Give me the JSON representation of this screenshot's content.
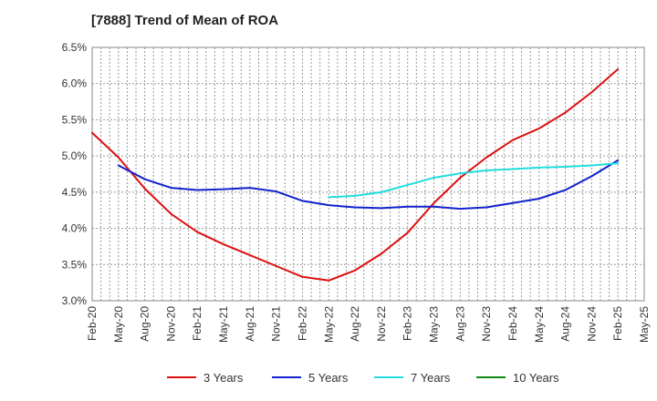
{
  "chart_data": {
    "type": "line",
    "title": "[7888]  Trend of Mean of ROA",
    "xlabel": "",
    "ylabel": "",
    "ylim": [
      3.0,
      6.5
    ],
    "y_ticks": [
      "6.5%",
      "6.0%",
      "5.5%",
      "5.0%",
      "4.5%",
      "4.0%",
      "3.5%",
      "3.0%"
    ],
    "y_tick_values": [
      6.5,
      6.0,
      5.5,
      5.0,
      4.5,
      4.0,
      3.5,
      3.0
    ],
    "categories": [
      "Feb-20",
      "May-20",
      "Aug-20",
      "Nov-20",
      "Feb-21",
      "May-21",
      "Aug-21",
      "Nov-21",
      "Feb-22",
      "May-22",
      "Aug-22",
      "Nov-22",
      "Feb-23",
      "May-23",
      "Aug-23",
      "Nov-23",
      "Feb-24",
      "May-24",
      "Aug-24",
      "Nov-24",
      "Feb-25",
      "May-25"
    ],
    "grid": true,
    "legend_position": "bottom",
    "series": [
      {
        "name": "3 Years",
        "color": "#dd1111",
        "values": [
          5.32,
          4.98,
          4.55,
          4.2,
          3.95,
          3.78,
          3.63,
          3.48,
          3.33,
          3.28,
          3.42,
          3.65,
          3.94,
          4.35,
          4.7,
          4.98,
          5.22,
          5.38,
          5.6,
          5.88,
          6.2,
          null
        ]
      },
      {
        "name": "5 Years",
        "color": "#1122cc",
        "values": [
          null,
          4.87,
          4.68,
          4.56,
          4.53,
          4.54,
          4.56,
          4.51,
          4.38,
          4.32,
          4.29,
          4.28,
          4.3,
          4.3,
          4.27,
          4.29,
          4.35,
          4.41,
          4.53,
          4.72,
          4.94,
          null
        ]
      },
      {
        "name": "7 Years",
        "color": "#22dddd",
        "values": [
          null,
          null,
          null,
          null,
          null,
          null,
          null,
          null,
          null,
          4.43,
          4.45,
          4.5,
          4.6,
          4.7,
          4.76,
          4.8,
          4.82,
          4.84,
          4.85,
          4.87,
          4.9,
          null
        ]
      },
      {
        "name": "10 Years",
        "color": "#118811",
        "values": [
          null,
          null,
          null,
          null,
          null,
          null,
          null,
          null,
          null,
          null,
          null,
          null,
          null,
          null,
          null,
          null,
          null,
          null,
          null,
          null,
          null,
          null
        ]
      }
    ]
  }
}
